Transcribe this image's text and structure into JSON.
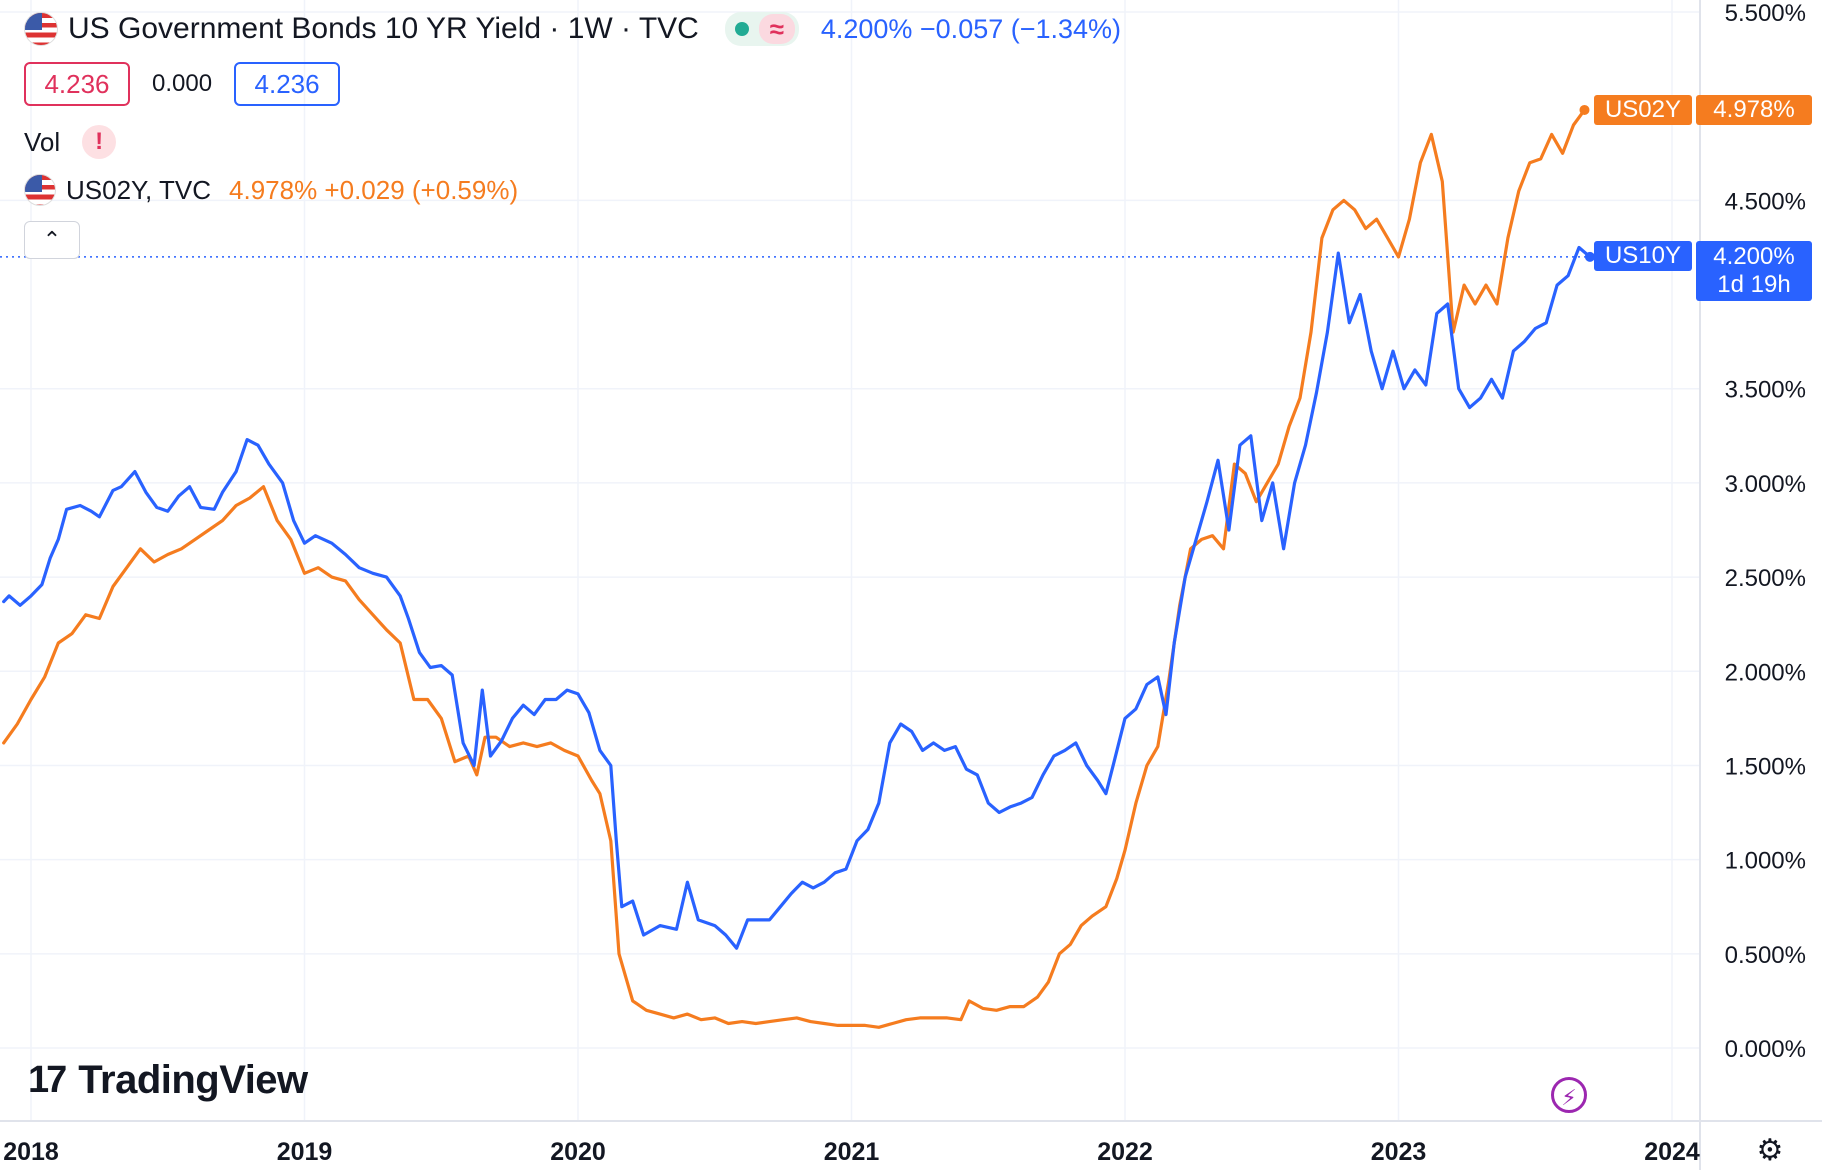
{
  "header": {
    "title": "US Government Bonds 10 YR Yield · 1W · TVC",
    "quote": "4.200%  −0.057 (−1.34%)",
    "ohlc": {
      "bid": "4.236",
      "spread": "0.000",
      "ask": "4.236"
    },
    "vol_label": "Vol",
    "warning_symbol": "!",
    "wave_symbol": "≈",
    "compare": {
      "symbol": "US02Y, TVC",
      "quote": "4.978%  +0.029 (+0.59%)"
    },
    "collapse_symbol": "⌃"
  },
  "badges": {
    "us02y": {
      "name": "US02Y",
      "value": "4.978%"
    },
    "us10y": {
      "name": "US10Y",
      "value": "4.200%",
      "countdown": "1d 19h"
    }
  },
  "brand": {
    "mark": "17",
    "name": "TradingView"
  },
  "icons": {
    "bolt": "lightning-icon",
    "gear": "settings-icon",
    "flag": "us-flag-icon"
  },
  "colors": {
    "us10y": "#2962ff",
    "us02y": "#f57c1f",
    "grid": "#f0f3fa",
    "axis_text": "#131722"
  },
  "chart_data": {
    "type": "line",
    "x_unit": "year (decimal)",
    "xlim": [
      2017.9,
      2024.09
    ],
    "ylim": [
      -0.05,
      5.5
    ],
    "yticks": [
      0.0,
      0.5,
      1.0,
      1.5,
      2.0,
      2.5,
      3.0,
      3.5,
      4.5,
      5.5
    ],
    "ytick_labels": [
      "0.000%",
      "0.500%",
      "1.000%",
      "1.500%",
      "2.000%",
      "2.500%",
      "3.000%",
      "3.500%",
      "4.500%",
      "5.500%"
    ],
    "xticks": [
      2018,
      2019,
      2020,
      2021,
      2022,
      2023,
      2024
    ],
    "xtick_labels": [
      "2018",
      "2019",
      "2020",
      "2021",
      "2022",
      "2023",
      "2024"
    ],
    "grid": true,
    "current_value_line": 4.2,
    "series": [
      {
        "name": "US10Y",
        "points": [
          [
            2017.9,
            2.37
          ],
          [
            2017.92,
            2.4
          ],
          [
            2017.96,
            2.35
          ],
          [
            2018.0,
            2.4
          ],
          [
            2018.04,
            2.46
          ],
          [
            2018.07,
            2.6
          ],
          [
            2018.1,
            2.7
          ],
          [
            2018.13,
            2.86
          ],
          [
            2018.18,
            2.88
          ],
          [
            2018.22,
            2.85
          ],
          [
            2018.25,
            2.82
          ],
          [
            2018.3,
            2.96
          ],
          [
            2018.33,
            2.98
          ],
          [
            2018.38,
            3.06
          ],
          [
            2018.42,
            2.95
          ],
          [
            2018.46,
            2.87
          ],
          [
            2018.5,
            2.85
          ],
          [
            2018.54,
            2.93
          ],
          [
            2018.58,
            2.98
          ],
          [
            2018.62,
            2.87
          ],
          [
            2018.67,
            2.86
          ],
          [
            2018.7,
            2.95
          ],
          [
            2018.75,
            3.06
          ],
          [
            2018.79,
            3.23
          ],
          [
            2018.83,
            3.2
          ],
          [
            2018.87,
            3.1
          ],
          [
            2018.92,
            3.0
          ],
          [
            2018.96,
            2.8
          ],
          [
            2019.0,
            2.68
          ],
          [
            2019.04,
            2.72
          ],
          [
            2019.1,
            2.68
          ],
          [
            2019.15,
            2.62
          ],
          [
            2019.2,
            2.55
          ],
          [
            2019.25,
            2.52
          ],
          [
            2019.3,
            2.5
          ],
          [
            2019.35,
            2.4
          ],
          [
            2019.38,
            2.28
          ],
          [
            2019.42,
            2.1
          ],
          [
            2019.46,
            2.02
          ],
          [
            2019.5,
            2.03
          ],
          [
            2019.54,
            1.98
          ],
          [
            2019.58,
            1.62
          ],
          [
            2019.62,
            1.5
          ],
          [
            2019.65,
            1.9
          ],
          [
            2019.68,
            1.55
          ],
          [
            2019.72,
            1.63
          ],
          [
            2019.76,
            1.75
          ],
          [
            2019.8,
            1.82
          ],
          [
            2019.84,
            1.77
          ],
          [
            2019.88,
            1.85
          ],
          [
            2019.92,
            1.85
          ],
          [
            2019.96,
            1.9
          ],
          [
            2020.0,
            1.88
          ],
          [
            2020.04,
            1.78
          ],
          [
            2020.08,
            1.58
          ],
          [
            2020.12,
            1.5
          ],
          [
            2020.14,
            1.1
          ],
          [
            2020.16,
            0.75
          ],
          [
            2020.2,
            0.78
          ],
          [
            2020.24,
            0.6
          ],
          [
            2020.3,
            0.65
          ],
          [
            2020.36,
            0.63
          ],
          [
            2020.4,
            0.88
          ],
          [
            2020.44,
            0.68
          ],
          [
            2020.5,
            0.65
          ],
          [
            2020.54,
            0.6
          ],
          [
            2020.58,
            0.53
          ],
          [
            2020.62,
            0.68
          ],
          [
            2020.66,
            0.68
          ],
          [
            2020.7,
            0.68
          ],
          [
            2020.74,
            0.75
          ],
          [
            2020.78,
            0.82
          ],
          [
            2020.82,
            0.88
          ],
          [
            2020.86,
            0.85
          ],
          [
            2020.9,
            0.88
          ],
          [
            2020.94,
            0.93
          ],
          [
            2020.98,
            0.95
          ],
          [
            2021.02,
            1.1
          ],
          [
            2021.06,
            1.16
          ],
          [
            2021.1,
            1.3
          ],
          [
            2021.14,
            1.62
          ],
          [
            2021.18,
            1.72
          ],
          [
            2021.22,
            1.68
          ],
          [
            2021.26,
            1.58
          ],
          [
            2021.3,
            1.62
          ],
          [
            2021.34,
            1.58
          ],
          [
            2021.38,
            1.6
          ],
          [
            2021.42,
            1.48
          ],
          [
            2021.46,
            1.45
          ],
          [
            2021.5,
            1.3
          ],
          [
            2021.54,
            1.25
          ],
          [
            2021.58,
            1.28
          ],
          [
            2021.62,
            1.3
          ],
          [
            2021.66,
            1.33
          ],
          [
            2021.7,
            1.45
          ],
          [
            2021.74,
            1.55
          ],
          [
            2021.78,
            1.58
          ],
          [
            2021.82,
            1.62
          ],
          [
            2021.86,
            1.5
          ],
          [
            2021.9,
            1.42
          ],
          [
            2021.93,
            1.35
          ],
          [
            2021.96,
            1.52
          ],
          [
            2022.0,
            1.75
          ],
          [
            2022.04,
            1.8
          ],
          [
            2022.08,
            1.93
          ],
          [
            2022.12,
            1.97
          ],
          [
            2022.15,
            1.77
          ],
          [
            2022.18,
            2.15
          ],
          [
            2022.22,
            2.5
          ],
          [
            2022.26,
            2.7
          ],
          [
            2022.3,
            2.9
          ],
          [
            2022.34,
            3.12
          ],
          [
            2022.38,
            2.75
          ],
          [
            2022.42,
            3.2
          ],
          [
            2022.46,
            3.25
          ],
          [
            2022.5,
            2.8
          ],
          [
            2022.54,
            3.0
          ],
          [
            2022.58,
            2.65
          ],
          [
            2022.62,
            3.0
          ],
          [
            2022.66,
            3.2
          ],
          [
            2022.7,
            3.48
          ],
          [
            2022.74,
            3.8
          ],
          [
            2022.78,
            4.22
          ],
          [
            2022.82,
            3.85
          ],
          [
            2022.86,
            4.0
          ],
          [
            2022.9,
            3.7
          ],
          [
            2022.94,
            3.5
          ],
          [
            2022.98,
            3.7
          ],
          [
            2023.02,
            3.5
          ],
          [
            2023.06,
            3.6
          ],
          [
            2023.1,
            3.52
          ],
          [
            2023.14,
            3.9
          ],
          [
            2023.18,
            3.95
          ],
          [
            2023.22,
            3.5
          ],
          [
            2023.26,
            3.4
          ],
          [
            2023.3,
            3.45
          ],
          [
            2023.34,
            3.55
          ],
          [
            2023.38,
            3.45
          ],
          [
            2023.42,
            3.7
          ],
          [
            2023.46,
            3.75
          ],
          [
            2023.5,
            3.82
          ],
          [
            2023.54,
            3.85
          ],
          [
            2023.58,
            4.05
          ],
          [
            2023.62,
            4.1
          ],
          [
            2023.66,
            4.25
          ],
          [
            2023.7,
            4.2
          ]
        ]
      },
      {
        "name": "US02Y",
        "points": [
          [
            2017.9,
            1.62
          ],
          [
            2017.95,
            1.72
          ],
          [
            2018.0,
            1.85
          ],
          [
            2018.05,
            1.97
          ],
          [
            2018.1,
            2.15
          ],
          [
            2018.15,
            2.2
          ],
          [
            2018.2,
            2.3
          ],
          [
            2018.25,
            2.28
          ],
          [
            2018.3,
            2.45
          ],
          [
            2018.35,
            2.55
          ],
          [
            2018.4,
            2.65
          ],
          [
            2018.45,
            2.58
          ],
          [
            2018.5,
            2.62
          ],
          [
            2018.55,
            2.65
          ],
          [
            2018.6,
            2.7
          ],
          [
            2018.65,
            2.75
          ],
          [
            2018.7,
            2.8
          ],
          [
            2018.75,
            2.88
          ],
          [
            2018.8,
            2.92
          ],
          [
            2018.85,
            2.98
          ],
          [
            2018.9,
            2.8
          ],
          [
            2018.95,
            2.7
          ],
          [
            2019.0,
            2.52
          ],
          [
            2019.05,
            2.55
          ],
          [
            2019.1,
            2.5
          ],
          [
            2019.15,
            2.48
          ],
          [
            2019.2,
            2.38
          ],
          [
            2019.25,
            2.3
          ],
          [
            2019.3,
            2.22
          ],
          [
            2019.35,
            2.15
          ],
          [
            2019.4,
            1.85
          ],
          [
            2019.45,
            1.85
          ],
          [
            2019.5,
            1.75
          ],
          [
            2019.55,
            1.52
          ],
          [
            2019.6,
            1.55
          ],
          [
            2019.63,
            1.45
          ],
          [
            2019.66,
            1.65
          ],
          [
            2019.7,
            1.65
          ],
          [
            2019.75,
            1.6
          ],
          [
            2019.8,
            1.62
          ],
          [
            2019.85,
            1.6
          ],
          [
            2019.9,
            1.62
          ],
          [
            2019.95,
            1.58
          ],
          [
            2020.0,
            1.55
          ],
          [
            2020.05,
            1.42
          ],
          [
            2020.08,
            1.35
          ],
          [
            2020.12,
            1.1
          ],
          [
            2020.15,
            0.5
          ],
          [
            2020.2,
            0.25
          ],
          [
            2020.25,
            0.2
          ],
          [
            2020.3,
            0.18
          ],
          [
            2020.35,
            0.16
          ],
          [
            2020.4,
            0.18
          ],
          [
            2020.45,
            0.15
          ],
          [
            2020.5,
            0.16
          ],
          [
            2020.55,
            0.13
          ],
          [
            2020.6,
            0.14
          ],
          [
            2020.65,
            0.13
          ],
          [
            2020.7,
            0.14
          ],
          [
            2020.75,
            0.15
          ],
          [
            2020.8,
            0.16
          ],
          [
            2020.85,
            0.14
          ],
          [
            2020.9,
            0.13
          ],
          [
            2020.95,
            0.12
          ],
          [
            2021.0,
            0.12
          ],
          [
            2021.05,
            0.12
          ],
          [
            2021.1,
            0.11
          ],
          [
            2021.15,
            0.13
          ],
          [
            2021.2,
            0.15
          ],
          [
            2021.25,
            0.16
          ],
          [
            2021.3,
            0.16
          ],
          [
            2021.35,
            0.16
          ],
          [
            2021.4,
            0.15
          ],
          [
            2021.43,
            0.25
          ],
          [
            2021.48,
            0.21
          ],
          [
            2021.53,
            0.2
          ],
          [
            2021.58,
            0.22
          ],
          [
            2021.63,
            0.22
          ],
          [
            2021.68,
            0.27
          ],
          [
            2021.72,
            0.35
          ],
          [
            2021.76,
            0.5
          ],
          [
            2021.8,
            0.55
          ],
          [
            2021.84,
            0.65
          ],
          [
            2021.88,
            0.7
          ],
          [
            2021.93,
            0.75
          ],
          [
            2021.97,
            0.9
          ],
          [
            2022.0,
            1.05
          ],
          [
            2022.04,
            1.3
          ],
          [
            2022.08,
            1.5
          ],
          [
            2022.12,
            1.6
          ],
          [
            2022.16,
            1.95
          ],
          [
            2022.2,
            2.35
          ],
          [
            2022.24,
            2.65
          ],
          [
            2022.28,
            2.7
          ],
          [
            2022.32,
            2.72
          ],
          [
            2022.36,
            2.65
          ],
          [
            2022.4,
            3.1
          ],
          [
            2022.44,
            3.05
          ],
          [
            2022.48,
            2.9
          ],
          [
            2022.52,
            3.0
          ],
          [
            2022.56,
            3.1
          ],
          [
            2022.6,
            3.3
          ],
          [
            2022.64,
            3.45
          ],
          [
            2022.68,
            3.8
          ],
          [
            2022.72,
            4.3
          ],
          [
            2022.76,
            4.45
          ],
          [
            2022.8,
            4.5
          ],
          [
            2022.84,
            4.45
          ],
          [
            2022.88,
            4.35
          ],
          [
            2022.92,
            4.4
          ],
          [
            2022.96,
            4.3
          ],
          [
            2023.0,
            4.2
          ],
          [
            2023.04,
            4.4
          ],
          [
            2023.08,
            4.7
          ],
          [
            2023.12,
            4.85
          ],
          [
            2023.16,
            4.6
          ],
          [
            2023.2,
            3.8
          ],
          [
            2023.24,
            4.05
          ],
          [
            2023.28,
            3.95
          ],
          [
            2023.32,
            4.05
          ],
          [
            2023.36,
            3.95
          ],
          [
            2023.4,
            4.3
          ],
          [
            2023.44,
            4.55
          ],
          [
            2023.48,
            4.7
          ],
          [
            2023.52,
            4.72
          ],
          [
            2023.56,
            4.85
          ],
          [
            2023.6,
            4.75
          ],
          [
            2023.64,
            4.9
          ],
          [
            2023.68,
            4.98
          ]
        ]
      }
    ]
  }
}
